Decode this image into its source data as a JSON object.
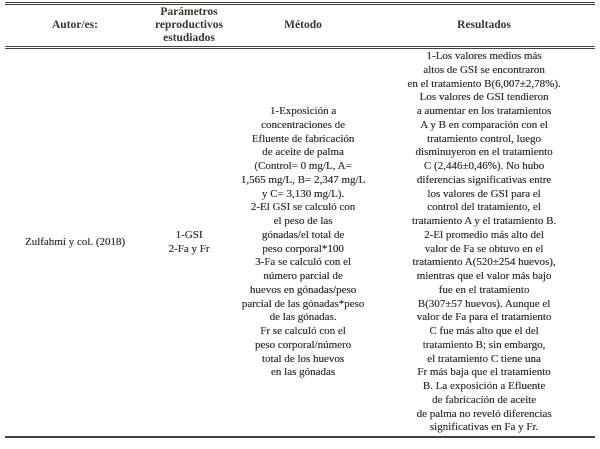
{
  "table": {
    "headers": {
      "author": "Autor/es:",
      "parameters": "Parámetros\nreproductivos\nestudiados",
      "method": "Método",
      "results": "Resultados"
    },
    "row": {
      "author": "Zulfahmi y col. (2018)",
      "parameters": "1-GSI\n2-Fa y Fr",
      "method": "1-Exposición a\nconcentraciones de\nEfluente de fabricación\nde aceite de palma\n(Control= 0 mg/L, A=\n1,565 mg/L, B= 2,347 mg/L\ny C= 3,130 mg/L).\n2-El GSI se calculó con\nel peso de las\ngónadas/el total de\npeso corporal*100\n3-Fa se calculó con el\nnúmero parcial de\nhuevos en gónadas/peso\nparcial de las gónadas*peso\nde las gónadas.\nFr se calculó con el\npeso corporal/número\ntotal de los huevos\nen las gónadas",
      "results": "1-Los valores medios más\naltos de GSI se encontraron\nen el tratamiento B(6,007±2,78%).\nLos valores de GSI tendieron\na aumentar en los tratamientos\nA y B en comparación con el\ntratamiento control, luego\ndisminuyeron en el tratamiento\nC (2,446±0,46%). No hubo\ndiferencias significativas entre\nlos valores de GSI para el\ncontrol del tratamiento, el\ntratamiento A y el tratamiento B.\n2-El promedio más alto del\nvalor de Fa se obtuvo en el\ntratamiento A(520±254 huevos),\nmientras que el valor más bajo\nfue en el tratamiento\nB(307±57 huevos). Aunque el\nvalor de Fa para el tratamiento\nC fue más alto que el del\ntratamiento B; sin embargo,\nel tratamiento C tiene una\nFr más baja que el tratamiento\nB. La exposición a Efluente\nde fabricación de aceite\nde palma no reveló diferencias\nsignificativas en Fa y Fr."
    }
  }
}
